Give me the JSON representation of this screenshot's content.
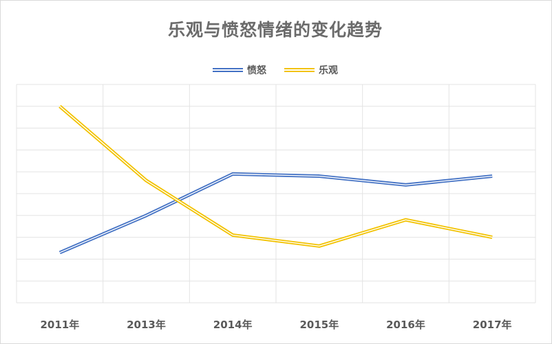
{
  "chart_data": {
    "type": "line",
    "title": "乐观与愤怒情绪的变化趋势",
    "categories": [
      "2011年",
      "2013年",
      "2014年",
      "2015年",
      "2016年",
      "2017年"
    ],
    "ylim": [
      0,
      10
    ],
    "grid": true,
    "legend_position": "top",
    "series": [
      {
        "name": "愤怒",
        "color": "#4472c4",
        "values": [
          2.3,
          4.0,
          5.9,
          5.8,
          5.4,
          5.8
        ]
      },
      {
        "name": "乐观",
        "color": "#f2c200",
        "values": [
          9.0,
          5.6,
          3.1,
          2.6,
          3.8,
          3.0
        ]
      }
    ]
  }
}
